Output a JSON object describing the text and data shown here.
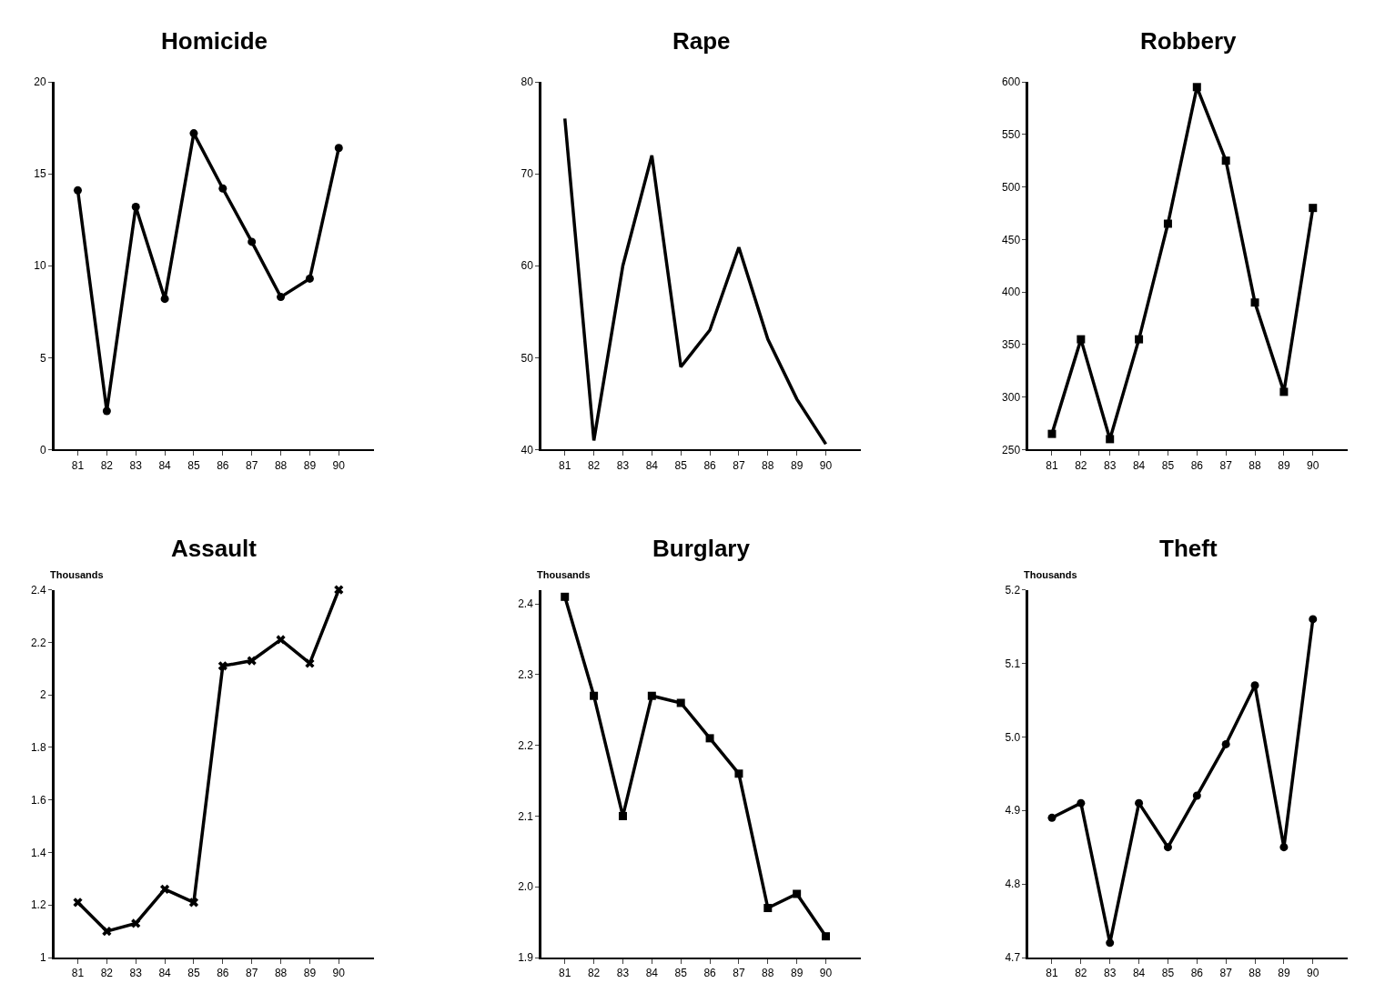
{
  "chart_data": [
    {
      "type": "line",
      "title": "Homicide",
      "categories": [
        "81",
        "82",
        "83",
        "84",
        "85",
        "86",
        "87",
        "88",
        "89",
        "90"
      ],
      "series": [
        {
          "color": "#000000",
          "values": [
            14.1,
            2.1,
            13.2,
            8.2,
            17.2,
            14.2,
            11.3,
            8.3,
            9.3,
            16.4
          ]
        }
      ],
      "ylim": [
        0,
        20
      ],
      "yticks": [
        0,
        5,
        10,
        15,
        20
      ],
      "marker": "circle"
    },
    {
      "type": "line",
      "title": "Rape",
      "categories": [
        "81",
        "82",
        "83",
        "84",
        "85",
        "86",
        "87",
        "88",
        "89",
        "90"
      ],
      "series": [
        {
          "color": "#000000",
          "values": [
            76,
            41,
            60,
            72,
            49,
            53,
            62,
            52,
            45.5,
            40.6
          ]
        }
      ],
      "ylim": [
        40,
        80
      ],
      "yticks": [
        40,
        50,
        60,
        70,
        80
      ],
      "marker": "none"
    },
    {
      "type": "line",
      "title": "Robbery",
      "categories": [
        "81",
        "82",
        "83",
        "84",
        "85",
        "86",
        "87",
        "88",
        "89",
        "90"
      ],
      "series": [
        {
          "color": "#000000",
          "values": [
            265,
            355,
            260,
            355,
            465,
            595,
            525,
            390,
            305,
            480
          ]
        }
      ],
      "ylim": [
        250,
        600
      ],
      "yticks": [
        250,
        300,
        350,
        400,
        450,
        500,
        550,
        600
      ],
      "marker": "square"
    },
    {
      "type": "line",
      "title": "Assault",
      "ylabel": "Thousands",
      "categories": [
        "81",
        "82",
        "83",
        "84",
        "85",
        "86",
        "87",
        "88",
        "89",
        "90"
      ],
      "series": [
        {
          "color": "#000000",
          "values": [
            1.21,
            1.1,
            1.13,
            1.26,
            1.21,
            2.11,
            2.13,
            2.21,
            2.12,
            2.4
          ]
        }
      ],
      "ylim": [
        1,
        2.4
      ],
      "yticks": [
        1,
        1.2,
        1.4,
        1.6,
        1.8,
        2,
        2.2,
        2.4
      ],
      "marker": "cross"
    },
    {
      "type": "line",
      "title": "Burglary",
      "ylabel": "Thousands",
      "categories": [
        "81",
        "82",
        "83",
        "84",
        "85",
        "86",
        "87",
        "88",
        "89",
        "90"
      ],
      "series": [
        {
          "color": "#000000",
          "values": [
            2.41,
            2.27,
            2.1,
            2.27,
            2.26,
            2.21,
            2.16,
            1.97,
            1.99,
            1.93
          ]
        }
      ],
      "ylim": [
        1.9,
        2.42
      ],
      "yticks": [
        1.9,
        {
          "value": 2,
          "label": "2.0"
        },
        2.1,
        2.2,
        2.3,
        2.4
      ],
      "marker": "square"
    },
    {
      "type": "line",
      "title": "Theft",
      "ylabel": "Thousands",
      "categories": [
        "81",
        "82",
        "83",
        "84",
        "85",
        "86",
        "87",
        "88",
        "89",
        "90"
      ],
      "series": [
        {
          "color": "#000000",
          "values": [
            4.89,
            4.91,
            4.72,
            4.91,
            4.85,
            4.92,
            4.99,
            5.07,
            4.85,
            5.16
          ]
        }
      ],
      "ylim": [
        4.7,
        5.2
      ],
      "yticks": [
        4.7,
        4.8,
        4.9,
        {
          "value": 5,
          "label": "5.0"
        },
        5.1,
        5.2
      ],
      "marker": "circle"
    }
  ]
}
